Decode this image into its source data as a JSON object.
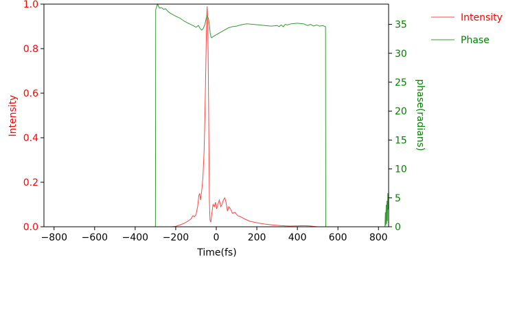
{
  "chart_data": {
    "type": "line",
    "xlabel": "Time(fs)",
    "ylabel_left": "Intensity",
    "ylabel_right": "phase(radians)",
    "xlim": [
      -850,
      850
    ],
    "ylim_left": [
      0,
      1.0
    ],
    "ylim_right": [
      0,
      38.5
    ],
    "x_ticks": [
      -800,
      -600,
      -400,
      -200,
      0,
      200,
      400,
      600,
      800
    ],
    "x_tick_labels": [
      "−800",
      "−600",
      "−400",
      "−200",
      "0",
      "200",
      "400",
      "600",
      "800"
    ],
    "y_left_ticks": [
      0,
      0.2,
      0.4,
      0.6,
      0.8,
      1.0
    ],
    "y_left_tick_labels": [
      "0.0",
      "0.2",
      "0.4",
      "0.6",
      "0.8",
      "1.0"
    ],
    "y_right_ticks": [
      0,
      5,
      10,
      15,
      20,
      25,
      30,
      35
    ],
    "y_right_tick_labels": [
      "0",
      "5",
      "10",
      "15",
      "20",
      "25",
      "30",
      "35"
    ],
    "grid": false,
    "legend_position": "top-right outside",
    "colors": {
      "intensity": "#ff0000",
      "phase": "#008000",
      "intensity_line": "#ff4444",
      "phase_line": "#339933"
    },
    "series": [
      {
        "name": "Intensity",
        "axis": "left",
        "points": [
          [
            -850,
            0
          ],
          [
            -220,
            0
          ],
          [
            -200,
            0.002
          ],
          [
            -180,
            0.008
          ],
          [
            -160,
            0.015
          ],
          [
            -140,
            0.025
          ],
          [
            -125,
            0.035
          ],
          [
            -115,
            0.05
          ],
          [
            -108,
            0.045
          ],
          [
            -100,
            0.055
          ],
          [
            -92,
            0.09
          ],
          [
            -86,
            0.14
          ],
          [
            -82,
            0.15
          ],
          [
            -78,
            0.12
          ],
          [
            -72,
            0.16
          ],
          [
            -66,
            0.22
          ],
          [
            -60,
            0.34
          ],
          [
            -56,
            0.5
          ],
          [
            -52,
            0.7
          ],
          [
            -49,
            0.86
          ],
          [
            -47,
            0.95
          ],
          [
            -45,
            0.99
          ],
          [
            -43,
            0.95
          ],
          [
            -40,
            0.78
          ],
          [
            -37,
            0.45
          ],
          [
            -34,
            0.12
          ],
          [
            -31,
            0.03
          ],
          [
            -27,
            0.02
          ],
          [
            -22,
            0.06
          ],
          [
            -16,
            0.1
          ],
          [
            -10,
            0.09
          ],
          [
            -4,
            0.11
          ],
          [
            2,
            0.08
          ],
          [
            8,
            0.1
          ],
          [
            15,
            0.12
          ],
          [
            22,
            0.09
          ],
          [
            28,
            0.1
          ],
          [
            35,
            0.12
          ],
          [
            42,
            0.13
          ],
          [
            48,
            0.11
          ],
          [
            55,
            0.07
          ],
          [
            62,
            0.09
          ],
          [
            70,
            0.08
          ],
          [
            80,
            0.06
          ],
          [
            92,
            0.065
          ],
          [
            105,
            0.05
          ],
          [
            120,
            0.045
          ],
          [
            140,
            0.035
          ],
          [
            165,
            0.025
          ],
          [
            200,
            0.018
          ],
          [
            240,
            0.012
          ],
          [
            280,
            0.008
          ],
          [
            320,
            0.005
          ],
          [
            360,
            0.003
          ],
          [
            400,
            0.004
          ],
          [
            430,
            0.005
          ],
          [
            460,
            0.004
          ],
          [
            480,
            0.002
          ],
          [
            500,
            0
          ],
          [
            850,
            0
          ]
        ]
      },
      {
        "name": "Phase",
        "axis": "right",
        "points": [
          [
            -300,
            0
          ],
          [
            -299,
            37.5
          ],
          [
            -290,
            38.5
          ],
          [
            -280,
            37.8
          ],
          [
            -270,
            37.9
          ],
          [
            -260,
            37.6
          ],
          [
            -250,
            37.7
          ],
          [
            -240,
            37.3
          ],
          [
            -230,
            37.0
          ],
          [
            -220,
            36.8
          ],
          [
            -200,
            36.4
          ],
          [
            -180,
            36.1
          ],
          [
            -160,
            35.6
          ],
          [
            -140,
            35.2
          ],
          [
            -120,
            34.9
          ],
          [
            -100,
            34.5
          ],
          [
            -88,
            34.8
          ],
          [
            -80,
            34.3
          ],
          [
            -72,
            34.0
          ],
          [
            -64,
            34.3
          ],
          [
            -56,
            35.0
          ],
          [
            -50,
            36.0
          ],
          [
            -46,
            36.5
          ],
          [
            -42,
            36.3
          ],
          [
            -38,
            35.9
          ],
          [
            -34,
            35.0
          ],
          [
            -30,
            33.5
          ],
          [
            -26,
            32.8
          ],
          [
            -22,
            32.7
          ],
          [
            -15,
            32.9
          ],
          [
            0,
            33.2
          ],
          [
            20,
            33.6
          ],
          [
            40,
            34.0
          ],
          [
            60,
            34.4
          ],
          [
            80,
            34.6
          ],
          [
            100,
            34.7
          ],
          [
            120,
            34.9
          ],
          [
            150,
            35.1
          ],
          [
            180,
            35.0
          ],
          [
            210,
            34.9
          ],
          [
            240,
            34.8
          ],
          [
            270,
            34.7
          ],
          [
            300,
            34.8
          ],
          [
            310,
            34.6
          ],
          [
            320,
            34.9
          ],
          [
            330,
            34.6
          ],
          [
            340,
            35.0
          ],
          [
            350,
            34.9
          ],
          [
            370,
            35.1
          ],
          [
            400,
            35.2
          ],
          [
            430,
            35.1
          ],
          [
            450,
            34.8
          ],
          [
            465,
            35.0
          ],
          [
            480,
            34.7
          ],
          [
            495,
            34.9
          ],
          [
            510,
            34.7
          ],
          [
            525,
            34.8
          ],
          [
            539,
            34.6
          ],
          [
            540,
            0
          ],
          [
            832,
            0
          ],
          [
            834,
            2.5
          ],
          [
            836,
            0.2
          ],
          [
            838,
            3.8
          ],
          [
            840,
            0.5
          ],
          [
            842,
            4.5
          ],
          [
            844,
            1.0
          ],
          [
            846,
            5.8
          ],
          [
            848,
            3.0
          ],
          [
            850,
            6.0
          ]
        ]
      }
    ]
  }
}
